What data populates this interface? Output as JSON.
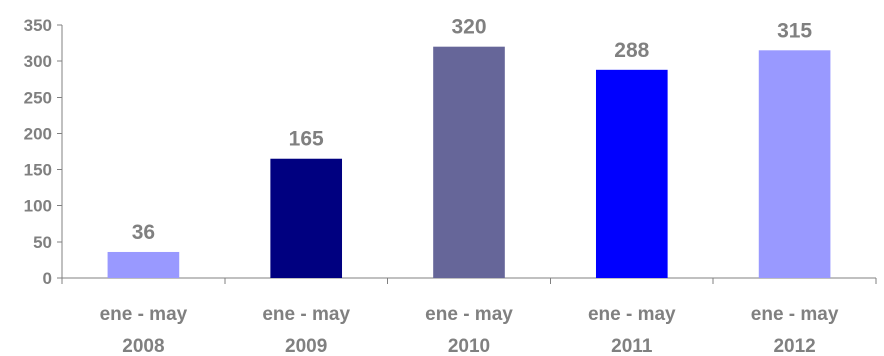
{
  "chart_data": {
    "type": "bar",
    "categories": [
      [
        "ene - may",
        "2008"
      ],
      [
        "ene - may",
        "2009"
      ],
      [
        "ene - may",
        "2010"
      ],
      [
        "ene - may",
        "2011"
      ],
      [
        "ene - may",
        "2012"
      ]
    ],
    "values": [
      36,
      165,
      320,
      288,
      315
    ],
    "bar_colors": [
      "#9999ff",
      "#000080",
      "#666699",
      "#0000ff",
      "#9999ff"
    ],
    "ylim": [
      0,
      350
    ],
    "yticks": [
      0,
      50,
      100,
      150,
      200,
      250,
      300,
      350
    ],
    "grid": false,
    "legend": "none",
    "title": "",
    "xlabel": "",
    "ylabel": ""
  }
}
